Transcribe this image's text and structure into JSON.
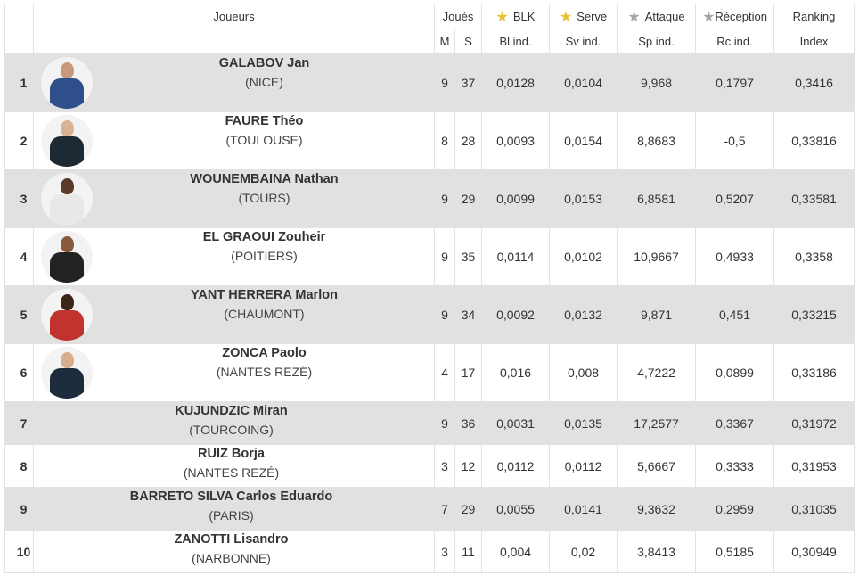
{
  "header": {
    "players": "Joueurs",
    "played": "Joués",
    "blk": "BLK",
    "serve": "Serve",
    "attaque": "Attaque",
    "reception": "Réception",
    "ranking": "Ranking",
    "m": "M",
    "s": "S",
    "bl_ind": "Bl ind.",
    "sv_ind": "Sv ind.",
    "sp_ind": "Sp ind.",
    "rc_ind": "Rc ind.",
    "index": "Index"
  },
  "star_colors": {
    "gold": "#e6c233",
    "grey": "#a6a6a6"
  },
  "rows": [
    {
      "rank": "1",
      "name": "GALABOV Jan",
      "club": "(NICE)",
      "m": "9",
      "s": "37",
      "bl": "0,0128",
      "sv": "0,0104",
      "sp": "9,968",
      "rc": "0,1797",
      "index": "0,3416",
      "photo": true,
      "skin": "#c99a7a",
      "jersey": "#2f4f8a"
    },
    {
      "rank": "2",
      "name": "FAURE Théo",
      "club": "(TOULOUSE)",
      "m": "8",
      "s": "28",
      "bl": "0,0093",
      "sv": "0,0154",
      "sp": "8,8683",
      "rc": "-0,5",
      "index": "0,33816",
      "photo": true,
      "skin": "#d9b294",
      "jersey": "#1e2a33"
    },
    {
      "rank": "3",
      "name": "WOUNEMBAINA Nathan",
      "club": "(TOURS)",
      "m": "9",
      "s": "29",
      "bl": "0,0099",
      "sv": "0,0153",
      "sp": "6,8581",
      "rc": "0,5207",
      "index": "0,33581",
      "photo": true,
      "skin": "#5a3a2a",
      "jersey": "#e8e8e8"
    },
    {
      "rank": "4",
      "name": "EL GRAOUI Zouheir",
      "club": "(POITIERS)",
      "m": "9",
      "s": "35",
      "bl": "0,0114",
      "sv": "0,0102",
      "sp": "10,9667",
      "rc": "0,4933",
      "index": "0,3358",
      "photo": true,
      "skin": "#8a5a3c",
      "jersey": "#222222"
    },
    {
      "rank": "5",
      "name": "YANT HERRERA Marlon",
      "club": "(CHAUMONT)",
      "m": "9",
      "s": "34",
      "bl": "0,0092",
      "sv": "0,0132",
      "sp": "9,871",
      "rc": "0,451",
      "index": "0,33215",
      "photo": true,
      "skin": "#3c2418",
      "jersey": "#c0332f"
    },
    {
      "rank": "6",
      "name": "ZONCA Paolo",
      "club": "(NANTES REZÉ)",
      "m": "4",
      "s": "17",
      "bl": "0,016",
      "sv": "0,008",
      "sp": "4,7222",
      "rc": "0,0899",
      "index": "0,33186",
      "photo": true,
      "skin": "#d8ad8c",
      "jersey": "#1c2c3c"
    },
    {
      "rank": "7",
      "name": "KUJUNDZIC Miran",
      "club": "(TOURCOING)",
      "m": "9",
      "s": "36",
      "bl": "0,0031",
      "sv": "0,0135",
      "sp": "17,2577",
      "rc": "0,3367",
      "index": "0,31972",
      "photo": false
    },
    {
      "rank": "8",
      "name": "RUIZ Borja",
      "club": "(NANTES REZÉ)",
      "m": "3",
      "s": "12",
      "bl": "0,0112",
      "sv": "0,0112",
      "sp": "5,6667",
      "rc": "0,3333",
      "index": "0,31953",
      "photo": false
    },
    {
      "rank": "9",
      "name": "BARRETO SILVA Carlos Eduardo",
      "club": "(PARIS)",
      "m": "7",
      "s": "29",
      "bl": "0,0055",
      "sv": "0,0141",
      "sp": "9,3632",
      "rc": "0,2959",
      "index": "0,31035",
      "photo": false
    },
    {
      "rank": "10",
      "name": "ZANOTTI Lisandro",
      "club": "(NARBONNE)",
      "m": "3",
      "s": "11",
      "bl": "0,004",
      "sv": "0,02",
      "sp": "3,8413",
      "rc": "0,5185",
      "index": "0,30949",
      "photo": false
    }
  ]
}
